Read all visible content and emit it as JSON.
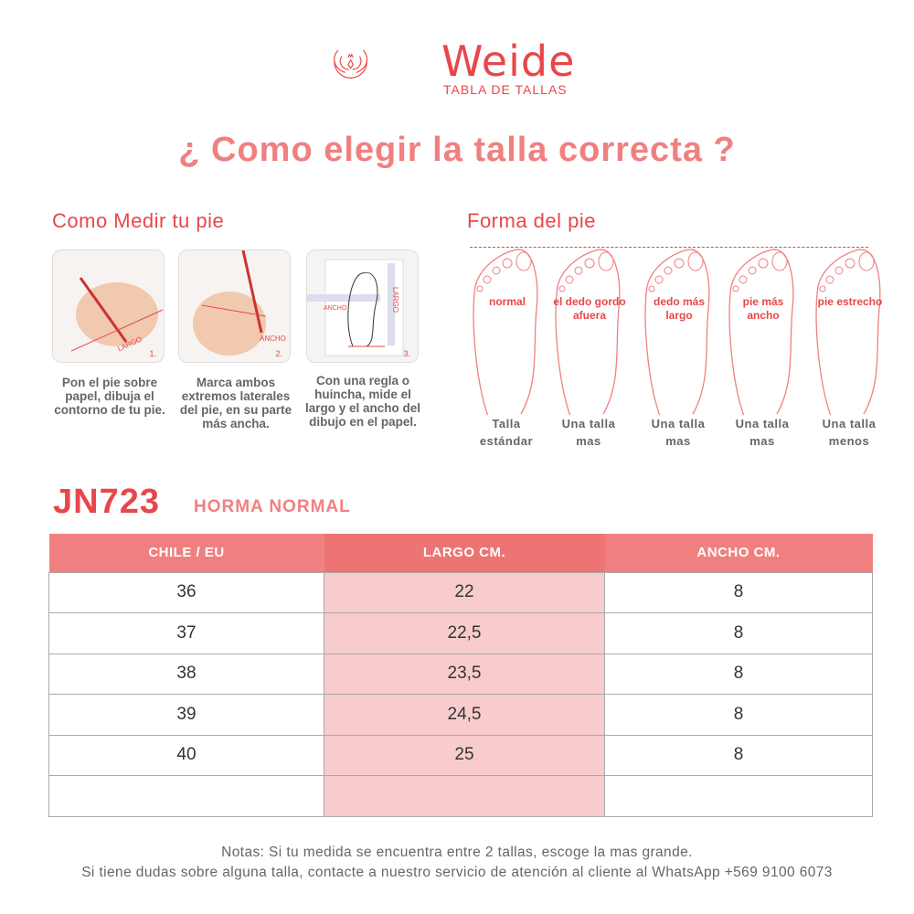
{
  "header": {
    "brand": "Weide",
    "subtitle": "TABLA DE TALLAS",
    "title": "¿ Como elegir la talla correcta ?"
  },
  "measure": {
    "heading": "Como Medir tu pie",
    "steps": [
      {
        "num": "1.",
        "label": "LARGO",
        "caption": "Pon el pie sobre papel, dibuja el contorno de tu pie."
      },
      {
        "num": "2.",
        "label": "ANCHO",
        "caption": "Marca ambos extremos laterales del pie, en su parte más ancha."
      },
      {
        "num": "3.",
        "label": "LARGO",
        "label2": "ANCHO",
        "caption": "Con una regla o huincha, mide el largo y el ancho del dibujo en el papel."
      }
    ]
  },
  "shape": {
    "heading": "Forma del pie",
    "feet": [
      {
        "label": "normal",
        "caption1": "Talla",
        "caption2": "estándar"
      },
      {
        "label": "el dedo gordo afuera",
        "caption1": "Una talla",
        "caption2": "mas"
      },
      {
        "label": "dedo más largo",
        "caption1": "Una talla",
        "caption2": "mas"
      },
      {
        "label": "pie más ancho",
        "caption1": "Una talla",
        "caption2": "mas"
      },
      {
        "label": "pie estrecho",
        "caption1": "Una talla",
        "caption2": "menos"
      }
    ]
  },
  "model": {
    "code": "JN723",
    "type": "HORMA NORMAL"
  },
  "table": {
    "headers": [
      "CHILE / EU",
      "LARGO CM.",
      "ANCHO CM."
    ],
    "rows": [
      [
        "36",
        "22",
        "8"
      ],
      [
        "37",
        "22,5",
        "8"
      ],
      [
        "38",
        "23,5",
        "8"
      ],
      [
        "39",
        "24,5",
        "8"
      ],
      [
        "40",
        "25",
        "8"
      ],
      [
        "",
        "",
        ""
      ]
    ]
  },
  "notes": [
    "Notas: Si tu medida se encuentra entre 2 tallas, escoge la mas grande.",
    "Si tiene dudas sobre alguna talla, contacte a nuestro servicio de atención al cliente al WhatsApp +569 9100 6073"
  ],
  "colors": {
    "accent": "#e8474a",
    "salmon": "#f08080",
    "pink": "#f8cccc"
  }
}
